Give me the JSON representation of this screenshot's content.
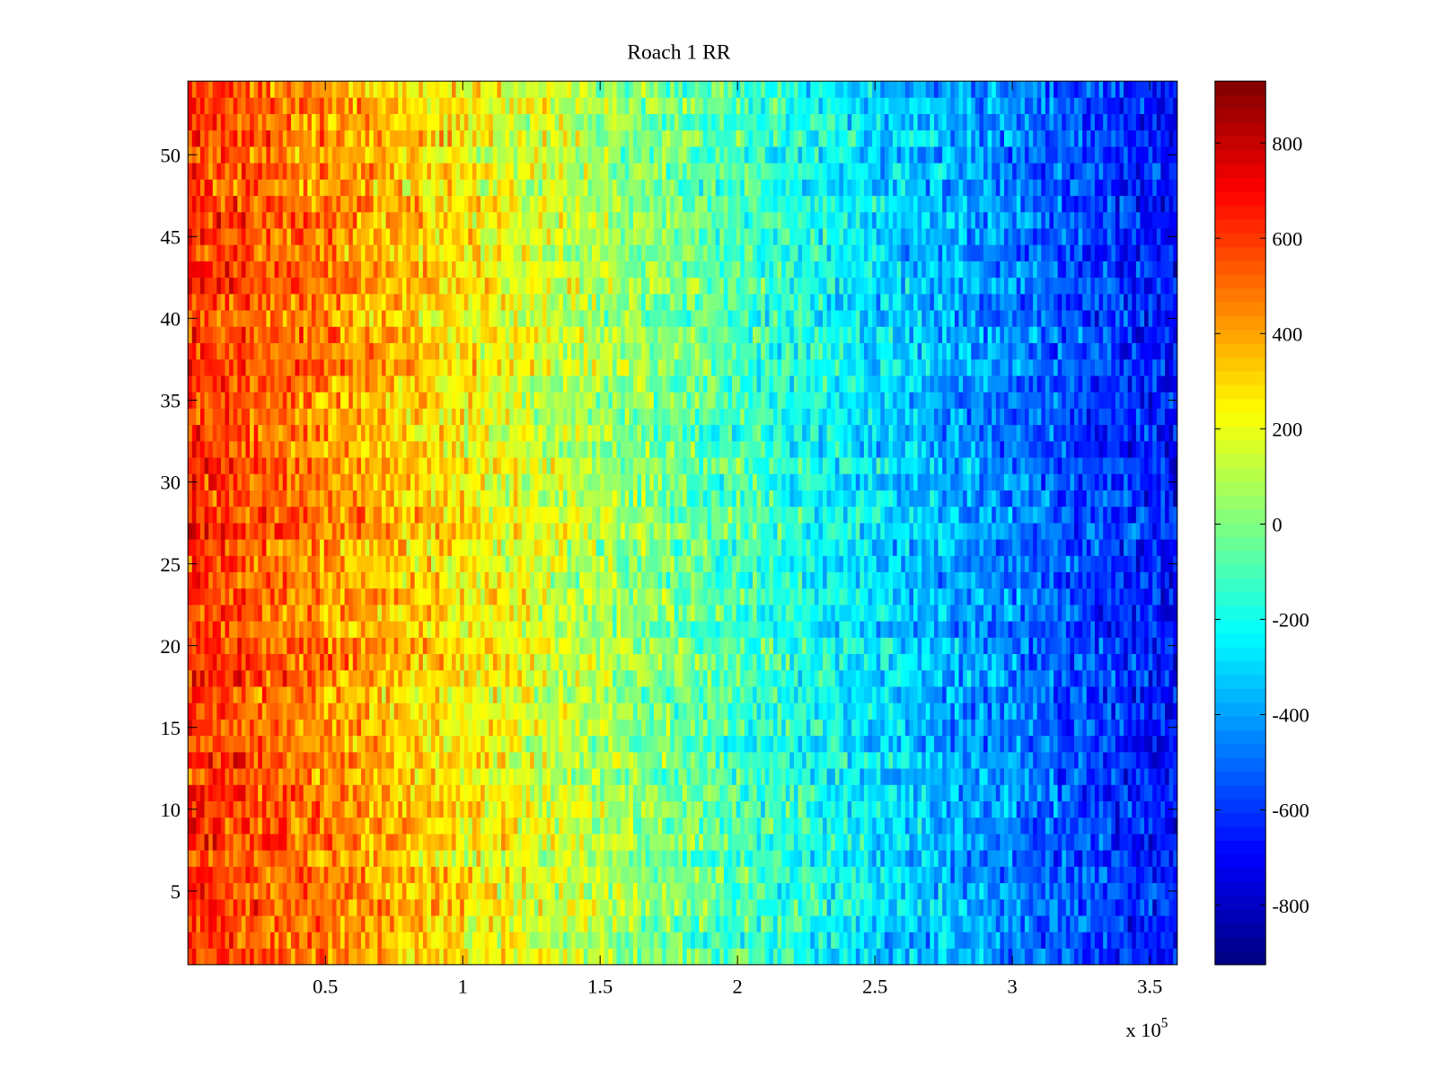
{
  "chart_data": {
    "type": "heatmap",
    "title": "Roach 1 RR",
    "xlabel": "",
    "ylabel": "",
    "x_exponent_label": "x 10",
    "x_exponent_power": "5",
    "xlim": [
      0,
      360000
    ],
    "ylim": [
      0.5,
      54.5
    ],
    "rows": 54,
    "columns": 240,
    "xticks": [
      50000,
      100000,
      150000,
      200000,
      250000,
      300000,
      350000
    ],
    "xtick_labels": [
      "0.5",
      "1",
      "1.5",
      "2",
      "2.5",
      "3",
      "3.5"
    ],
    "yticks": [
      5,
      10,
      15,
      20,
      25,
      30,
      35,
      40,
      45,
      50
    ],
    "ytick_labels": [
      "5",
      "10",
      "15",
      "20",
      "25",
      "30",
      "35",
      "40",
      "45",
      "50"
    ],
    "colormap": "jet",
    "clim": [
      -925,
      930
    ],
    "colorbar_ticks": [
      800,
      600,
      400,
      200,
      0,
      -200,
      -400,
      -600,
      -800
    ],
    "colorbar_tick_labels": [
      "800",
      "600",
      "400",
      "200",
      "0",
      "-200",
      "-400",
      "-600",
      "-800"
    ],
    "trend": {
      "value_at_xmin": 620,
      "value_at_xmax": -680,
      "noise_amplitude": 170
    },
    "grid": false
  }
}
